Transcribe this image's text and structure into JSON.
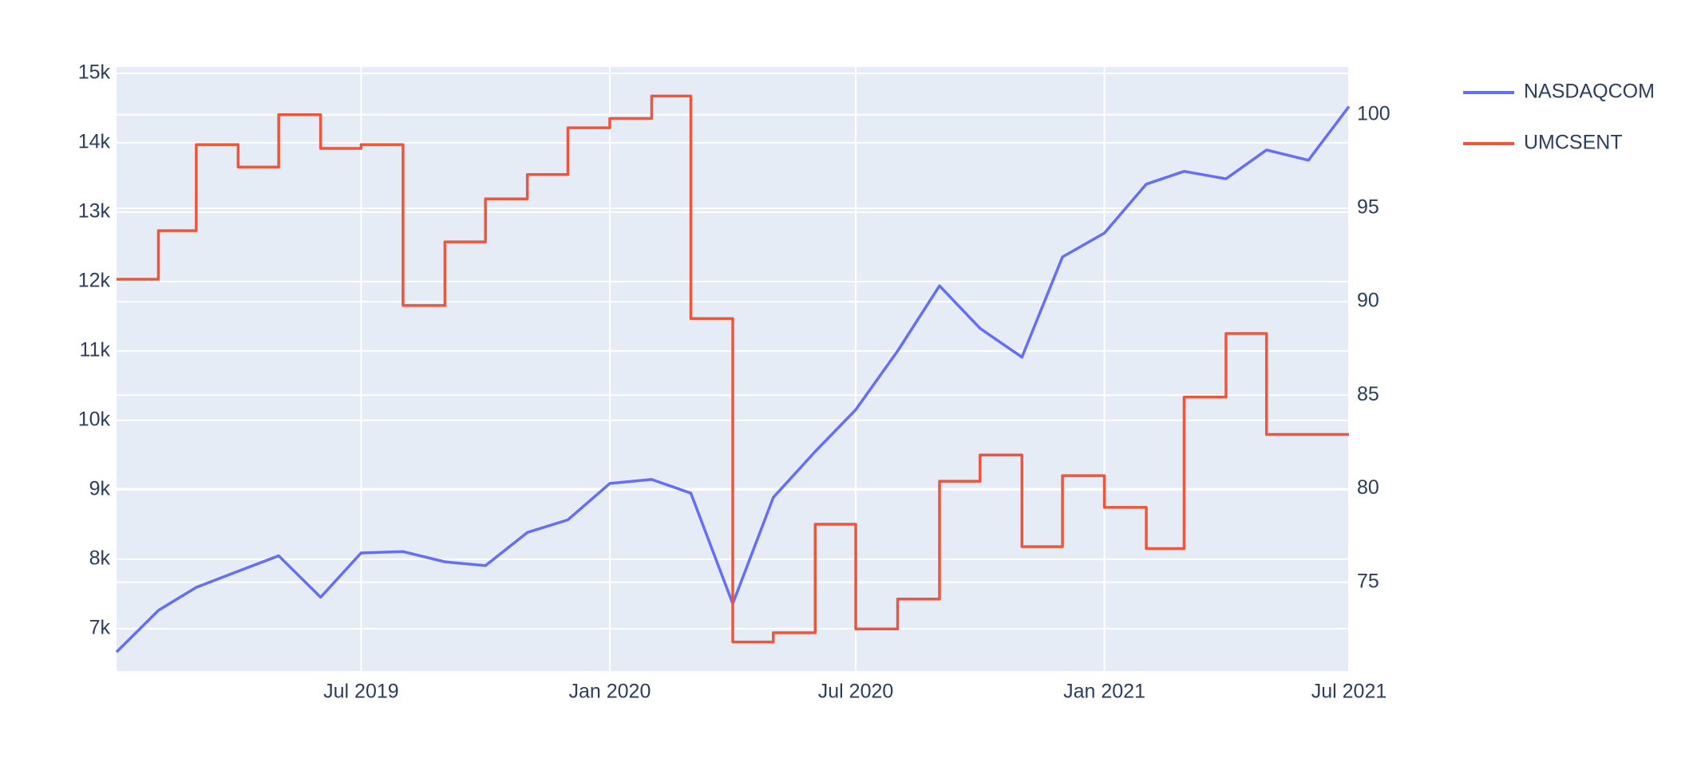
{
  "chart_data": {
    "type": "line",
    "grid": true,
    "legend": "top-right",
    "background": "#E5ECF6",
    "xlim": [
      "2019-01",
      "2021-07"
    ],
    "xticks": [
      {
        "value": "2019-07",
        "label": "Jul 2019"
      },
      {
        "value": "2020-01",
        "label": "Jan 2020"
      },
      {
        "value": "2020-07",
        "label": "Jul 2020"
      },
      {
        "value": "2021-01",
        "label": "Jan 2021"
      },
      {
        "value": "2021-07",
        "label": "Jul 2021"
      }
    ],
    "ylim": [
      6390,
      15090
    ],
    "yticks": [
      {
        "value": 7000,
        "label": "7k"
      },
      {
        "value": 8000,
        "label": "8k"
      },
      {
        "value": 9000,
        "label": "9k"
      },
      {
        "value": 10000,
        "label": "10k"
      },
      {
        "value": 11000,
        "label": "11k"
      },
      {
        "value": 12000,
        "label": "12k"
      },
      {
        "value": 13000,
        "label": "13k"
      },
      {
        "value": 14000,
        "label": "14k"
      },
      {
        "value": 15000,
        "label": "15k"
      }
    ],
    "y2lim": [
      70.25,
      102.55
    ],
    "y2ticks": [
      75,
      80,
      85,
      90,
      95,
      100
    ],
    "series": [
      {
        "name": "NASDAQCOM",
        "color": "#636efa",
        "x": [
          "2019-01",
          "2019-02",
          "2019-03",
          "2019-04",
          "2019-05",
          "2019-06",
          "2019-07",
          "2019-08",
          "2019-09",
          "2019-10",
          "2019-11",
          "2019-12",
          "2020-01",
          "2020-02",
          "2020-03",
          "2020-04",
          "2020-05",
          "2020-06",
          "2020-07",
          "2020-08",
          "2020-09",
          "2020-10",
          "2020-11",
          "2020-12",
          "2021-01",
          "2021-02",
          "2021-03",
          "2021-04",
          "2021-05",
          "2021-06",
          "2021-07"
        ],
        "values": [
          6665,
          7264,
          7595,
          7828,
          8050,
          7453,
          8091,
          8111,
          7963,
          7909,
          8386,
          8568,
          9092,
          9150,
          8952,
          7360,
          8890,
          9552,
          10154,
          11000,
          11939,
          11326,
          10911,
          12355,
          12698,
          13403,
          13588,
          13480,
          13895,
          13748,
          14522
        ]
      },
      {
        "name": "UMCSENT",
        "color": "#EF553B",
        "axis": "y2",
        "shape": "hv",
        "x": [
          "2019-01",
          "2019-02",
          "2019-03",
          "2019-04",
          "2019-05",
          "2019-06",
          "2019-07",
          "2019-08",
          "2019-09",
          "2019-10",
          "2019-11",
          "2019-12",
          "2020-01",
          "2020-02",
          "2020-03",
          "2020-04",
          "2020-05",
          "2020-06",
          "2020-07",
          "2020-08",
          "2020-09",
          "2020-10",
          "2020-11",
          "2020-12",
          "2021-01",
          "2021-02",
          "2021-03",
          "2021-04",
          "2021-05"
        ],
        "values": [
          91.2,
          93.8,
          98.4,
          97.2,
          100.0,
          98.2,
          98.4,
          89.8,
          93.2,
          95.5,
          96.8,
          99.3,
          99.8,
          101.0,
          89.1,
          71.8,
          72.3,
          78.1,
          72.5,
          74.1,
          80.4,
          81.8,
          76.9,
          80.7,
          79.0,
          76.8,
          84.9,
          88.3,
          82.9
        ]
      }
    ]
  }
}
